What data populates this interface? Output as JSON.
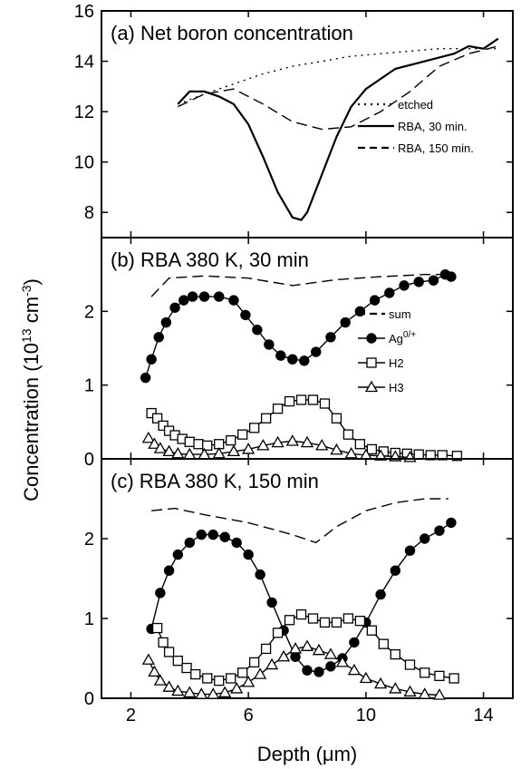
{
  "figure": {
    "xlabel": "Depth (μm)",
    "ylabel": "Concentration (10",
    "ylabel_exp": "13",
    "ylabel_unit": " cm",
    "ylabel_unit_exp": "-3",
    "ylabel_close": ")"
  },
  "chart_data": [
    {
      "type": "line",
      "title": "(a)  Net boron concentration",
      "xlim": [
        1,
        15
      ],
      "ylim": [
        7,
        16
      ],
      "yticks": [
        8,
        10,
        12,
        14,
        16
      ],
      "xticks": [
        2,
        6,
        10,
        14
      ],
      "legend_position": "right",
      "series": [
        {
          "name": "etched",
          "style": "dotted",
          "marker": "none",
          "x": [
            3.6,
            4.5,
            5.5,
            6.5,
            7.5,
            8.5,
            9.5,
            10.5,
            11.5,
            12.5,
            13.5,
            14.5
          ],
          "y": [
            12.3,
            12.7,
            13.1,
            13.5,
            13.8,
            14.0,
            14.2,
            14.3,
            14.4,
            14.5,
            14.5,
            14.5
          ]
        },
        {
          "name": "RBA, 30 min.",
          "style": "solid",
          "marker": "none",
          "x": [
            3.6,
            4.0,
            4.5,
            5.0,
            5.5,
            6.0,
            6.5,
            7.0,
            7.5,
            7.8,
            8.0,
            8.5,
            9.0,
            9.5,
            10.0,
            11.0,
            12.0,
            13.0,
            13.5,
            14.0,
            14.5
          ],
          "y": [
            12.3,
            12.8,
            12.8,
            12.6,
            12.3,
            11.5,
            10.2,
            8.8,
            7.8,
            7.7,
            8.0,
            9.5,
            11.0,
            12.2,
            12.9,
            13.7,
            14.0,
            14.3,
            14.6,
            14.5,
            14.9
          ]
        },
        {
          "name": "RBA, 150 min.",
          "style": "dashed",
          "marker": "none",
          "x": [
            3.6,
            4.5,
            5.5,
            6.5,
            7.5,
            8.5,
            9.5,
            10.5,
            11.5,
            12.5,
            13.5,
            14.5
          ],
          "y": [
            12.2,
            12.7,
            12.9,
            12.3,
            11.6,
            11.3,
            11.4,
            12.0,
            12.8,
            13.8,
            14.3,
            14.6
          ]
        }
      ]
    },
    {
      "type": "line",
      "title": "(b)  RBA 380 K, 30 min",
      "xlim": [
        1,
        15
      ],
      "ylim": [
        0,
        3
      ],
      "yticks": [
        0,
        1,
        2
      ],
      "xticks": [
        2,
        6,
        10,
        14
      ],
      "legend_position": "right",
      "series": [
        {
          "name": "sum",
          "style": "dashed",
          "marker": "none",
          "x": [
            2.7,
            3.3,
            4.5,
            6.0,
            7.5,
            9.0,
            10.5,
            12.0,
            12.8
          ],
          "y": [
            2.2,
            2.45,
            2.48,
            2.45,
            2.35,
            2.43,
            2.47,
            2.5,
            2.5
          ]
        },
        {
          "name": "Ag",
          "name_sup": "0/+",
          "style": "solid",
          "marker": "filled-circle",
          "x": [
            2.5,
            2.7,
            2.95,
            3.2,
            3.5,
            3.8,
            4.1,
            4.5,
            5.0,
            5.5,
            5.9,
            6.3,
            6.7,
            7.1,
            7.5,
            7.9,
            8.3,
            8.8,
            9.3,
            9.8,
            10.3,
            10.8,
            11.3,
            11.8,
            12.3,
            12.7,
            12.9
          ],
          "y": [
            1.1,
            1.35,
            1.65,
            1.85,
            2.05,
            2.15,
            2.2,
            2.2,
            2.2,
            2.15,
            1.95,
            1.75,
            1.55,
            1.4,
            1.35,
            1.33,
            1.45,
            1.65,
            1.85,
            2.0,
            2.15,
            2.25,
            2.35,
            2.4,
            2.42,
            2.5,
            2.47
          ]
        },
        {
          "name": "H2",
          "style": "solid",
          "marker": "open-square",
          "x": [
            2.7,
            2.9,
            3.1,
            3.3,
            3.5,
            3.75,
            4.0,
            4.3,
            4.6,
            5.0,
            5.4,
            5.8,
            6.2,
            6.6,
            7.0,
            7.4,
            7.8,
            8.2,
            8.6,
            9.0,
            9.4,
            9.8,
            10.2,
            10.6,
            11.0,
            11.4,
            11.8,
            12.2,
            12.6,
            13.1
          ],
          "y": [
            0.62,
            0.55,
            0.45,
            0.38,
            0.32,
            0.27,
            0.23,
            0.2,
            0.18,
            0.2,
            0.25,
            0.33,
            0.42,
            0.55,
            0.68,
            0.78,
            0.8,
            0.8,
            0.75,
            0.55,
            0.33,
            0.2,
            0.13,
            0.1,
            0.08,
            0.07,
            0.06,
            0.05,
            0.05,
            0.04
          ]
        },
        {
          "name": "H3",
          "style": "solid",
          "marker": "open-triangle",
          "x": [
            2.6,
            2.8,
            3.0,
            3.3,
            3.6,
            4.0,
            4.5,
            5.0,
            5.5,
            6.0,
            6.5,
            7.0,
            7.5,
            8.0,
            8.5,
            9.0,
            9.5,
            10.0,
            10.5,
            11.0,
            11.5
          ],
          "y": [
            0.28,
            0.2,
            0.14,
            0.1,
            0.07,
            0.06,
            0.06,
            0.07,
            0.1,
            0.13,
            0.18,
            0.22,
            0.24,
            0.22,
            0.18,
            0.12,
            0.07,
            0.05,
            0.04,
            0.03,
            0.02
          ]
        }
      ]
    },
    {
      "type": "line",
      "title": "(c)  RBA 380 K, 150 min",
      "xlim": [
        1,
        15
      ],
      "ylim": [
        0,
        3
      ],
      "yticks": [
        0,
        1,
        2
      ],
      "xticks": [
        2,
        6,
        10,
        14
      ],
      "series": [
        {
          "name": "sum",
          "style": "dashed",
          "marker": "none",
          "x": [
            2.7,
            3.5,
            4.5,
            6.0,
            7.5,
            8.3,
            9.0,
            10.0,
            11.0,
            12.0,
            12.8
          ],
          "y": [
            2.35,
            2.38,
            2.3,
            2.2,
            2.05,
            1.95,
            2.15,
            2.35,
            2.45,
            2.5,
            2.5
          ]
        },
        {
          "name": "Ag",
          "name_sup": "0/+",
          "style": "solid",
          "marker": "filled-circle",
          "x": [
            2.7,
            3.0,
            3.3,
            3.6,
            4.0,
            4.4,
            4.8,
            5.2,
            5.6,
            6.0,
            6.4,
            6.8,
            7.2,
            7.6,
            8.0,
            8.4,
            8.8,
            9.2,
            9.6,
            10.0,
            10.5,
            11.0,
            11.5,
            12.0,
            12.5,
            12.9
          ],
          "y": [
            0.87,
            1.32,
            1.6,
            1.8,
            1.95,
            2.05,
            2.05,
            2.02,
            1.95,
            1.8,
            1.55,
            1.2,
            0.85,
            0.52,
            0.35,
            0.33,
            0.4,
            0.5,
            0.7,
            0.95,
            1.3,
            1.6,
            1.85,
            2.0,
            2.1,
            2.2
          ]
        },
        {
          "name": "H2",
          "style": "solid",
          "marker": "open-square",
          "x": [
            2.9,
            3.1,
            3.3,
            3.6,
            3.9,
            4.2,
            4.6,
            5.0,
            5.4,
            5.8,
            6.2,
            6.6,
            7.0,
            7.4,
            7.8,
            8.2,
            8.6,
            9.0,
            9.4,
            9.8,
            10.2,
            10.6,
            11.0,
            11.5,
            12.0,
            12.5,
            13.0
          ],
          "y": [
            0.88,
            0.7,
            0.58,
            0.47,
            0.38,
            0.3,
            0.25,
            0.22,
            0.25,
            0.32,
            0.45,
            0.62,
            0.82,
            0.98,
            1.05,
            1.0,
            0.95,
            0.95,
            1.0,
            0.97,
            0.85,
            0.68,
            0.55,
            0.42,
            0.32,
            0.28,
            0.25
          ]
        },
        {
          "name": "H3",
          "style": "solid",
          "marker": "open-triangle",
          "x": [
            2.6,
            2.8,
            3.0,
            3.3,
            3.6,
            4.0,
            4.4,
            4.8,
            5.2,
            5.6,
            6.0,
            6.4,
            6.8,
            7.2,
            7.6,
            8.0,
            8.4,
            8.8,
            9.2,
            9.6,
            10.0,
            10.5,
            11.0,
            11.5,
            12.0,
            12.5
          ],
          "y": [
            0.48,
            0.33,
            0.22,
            0.14,
            0.09,
            0.07,
            0.05,
            0.05,
            0.07,
            0.12,
            0.2,
            0.3,
            0.42,
            0.52,
            0.62,
            0.65,
            0.6,
            0.55,
            0.45,
            0.35,
            0.25,
            0.18,
            0.12,
            0.08,
            0.05,
            0.04
          ]
        }
      ]
    }
  ]
}
